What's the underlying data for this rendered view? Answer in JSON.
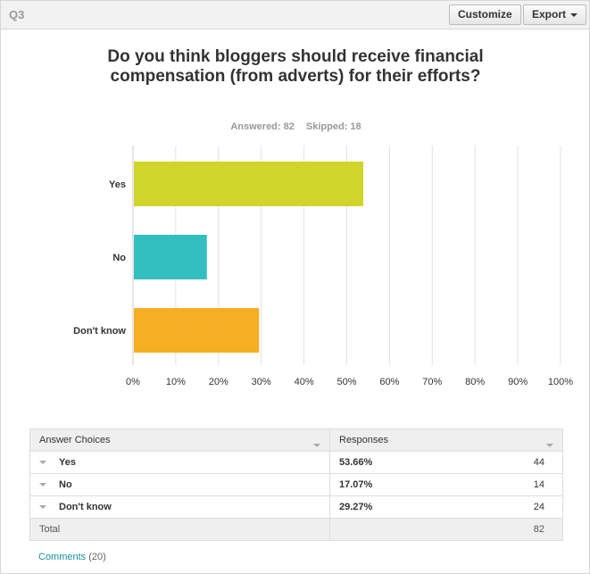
{
  "question_number": "Q3",
  "buttons": {
    "customize": "Customize",
    "export": "Export"
  },
  "title": "Do you think bloggers should receive financial compensation (from adverts) for their efforts?",
  "answered_text": "Answered: 82",
  "skipped_text": "Skipped: 18",
  "chart_data": {
    "type": "bar",
    "orientation": "horizontal",
    "title": "Do you think bloggers should receive financial compensation (from adverts) for their efforts?",
    "categories": [
      "Yes",
      "No",
      "Don't know"
    ],
    "values": [
      53.66,
      17.07,
      29.27
    ],
    "colors": [
      "#d1d42a",
      "#33bfbf",
      "#f6ae22"
    ],
    "x_ticks": [
      "0%",
      "10%",
      "20%",
      "30%",
      "40%",
      "50%",
      "60%",
      "70%",
      "80%",
      "90%",
      "100%"
    ],
    "xlim": [
      0,
      100
    ],
    "grid": true
  },
  "table": {
    "headers": {
      "choices": "Answer Choices",
      "responses": "Responses"
    },
    "rows": [
      {
        "choice": "Yes",
        "percent": "53.66%",
        "count": "44"
      },
      {
        "choice": "No",
        "percent": "17.07%",
        "count": "14"
      },
      {
        "choice": "Don't know",
        "percent": "29.27%",
        "count": "24"
      }
    ],
    "total_label": "Total",
    "total_value": "82"
  },
  "comments": {
    "label": "Comments",
    "count": "(20)"
  }
}
